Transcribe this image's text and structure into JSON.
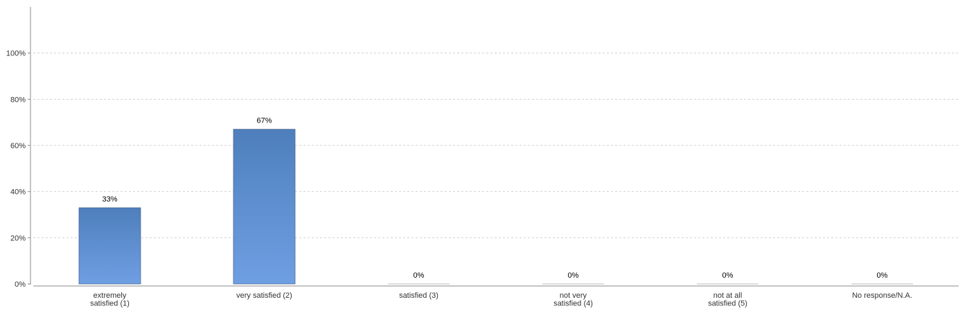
{
  "chart_data": {
    "type": "bar",
    "categories": [
      [
        "extremely",
        "satisfied (1)"
      ],
      [
        "very satisfied (2)"
      ],
      [
        "satisfied (3)"
      ],
      [
        "not very",
        "satisfied (4)"
      ],
      [
        "not at all",
        "satisfied (5)"
      ],
      [
        "No response/N.A."
      ]
    ],
    "values": [
      33,
      67,
      0,
      0,
      0,
      0
    ],
    "value_labels": [
      "33%",
      "67%",
      "0%",
      "0%",
      "0%",
      "0%"
    ],
    "y_ticks": [
      "0%",
      "20%",
      "40%",
      "60%",
      "80%",
      "100%"
    ],
    "ylim": [
      0,
      120
    ],
    "grid": true,
    "colors": {
      "bar_top": "#4e7fbc",
      "bar_bottom": "#6f9fe3",
      "bar_edge": "#4a6a98",
      "grid": "#d0d0d0",
      "axis": "#888888"
    }
  }
}
